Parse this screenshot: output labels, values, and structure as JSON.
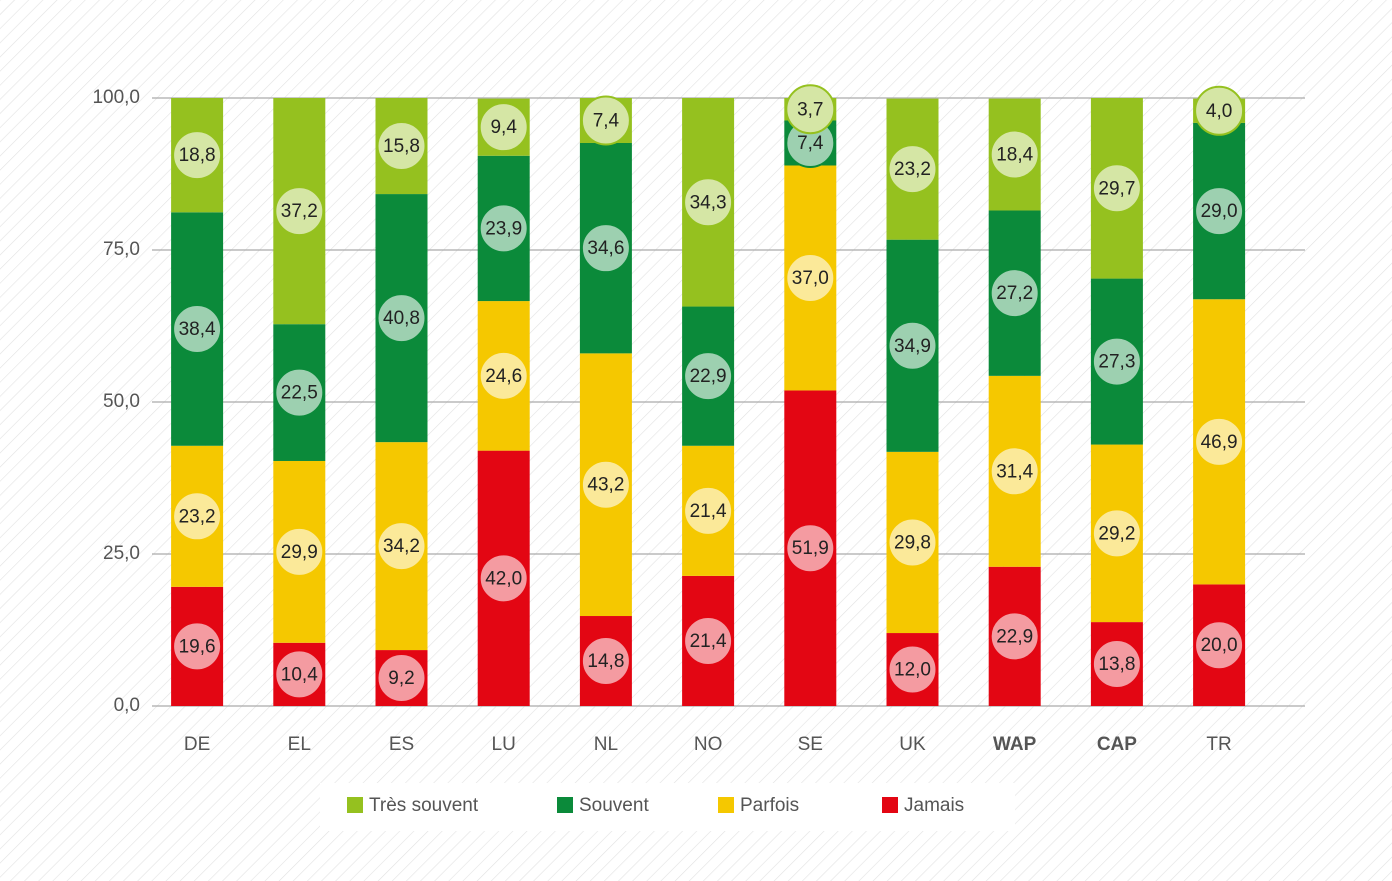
{
  "chart_data": {
    "type": "stacked_bar",
    "categories": [
      "DE",
      "EL",
      "ES",
      "LU",
      "NL",
      "NO",
      "SE",
      "UK",
      "WAP",
      "CAP",
      "TR"
    ],
    "bold_categories": [
      8,
      9
    ],
    "series": [
      {
        "name": "Très souvent",
        "color": "#95c11f",
        "values": [
          18.8,
          37.2,
          15.8,
          9.4,
          7.4,
          34.3,
          3.7,
          23.2,
          18.4,
          29.7,
          4.0
        ],
        "value_labels": [
          "18,8",
          "37,2",
          "15,8",
          "9,4",
          "7,4",
          "34,3",
          "3,7",
          "23,2",
          "18,4",
          "29,7",
          "4,0"
        ]
      },
      {
        "name": "Souvent",
        "color": "#0b8a3a",
        "values": [
          38.4,
          22.5,
          40.8,
          23.9,
          34.6,
          22.9,
          7.4,
          34.9,
          27.2,
          27.3,
          29.0
        ],
        "value_labels": [
          "38,4",
          "22,5",
          "40,8",
          "23,9",
          "34,6",
          "22,9",
          "7,4",
          "34,9",
          "27,2",
          "27,3",
          "29,0"
        ]
      },
      {
        "name": "Parfois",
        "color": "#f5c800",
        "values": [
          23.2,
          29.9,
          34.2,
          24.6,
          43.2,
          21.4,
          37.0,
          29.8,
          31.4,
          29.2,
          46.9
        ],
        "value_labels": [
          "23,2",
          "29,9",
          "34,2",
          "24,6",
          "43,2",
          "21,4",
          "37,0",
          "29,8",
          "31,4",
          "29,2",
          "46,9"
        ]
      },
      {
        "name": "Jamais",
        "color": "#e30613",
        "values": [
          19.6,
          10.4,
          9.2,
          42.0,
          14.8,
          21.4,
          51.9,
          12.0,
          22.9,
          13.8,
          20.0
        ],
        "value_labels": [
          "19,6",
          "10,4",
          "9,2",
          "42,0",
          "14,8",
          "21,4",
          "51,9",
          "12,0",
          "22,9",
          "13,8",
          "20,0"
        ]
      }
    ],
    "ylim": [
      0,
      100
    ],
    "yticks": [
      {
        "value": 0,
        "label": "0,0"
      },
      {
        "value": 25,
        "label": "25,0"
      },
      {
        "value": 50,
        "label": "50,0"
      },
      {
        "value": 75,
        "label": "75,0"
      },
      {
        "value": 100,
        "label": "100,0"
      }
    ],
    "grid": true,
    "legend": "bottom"
  }
}
